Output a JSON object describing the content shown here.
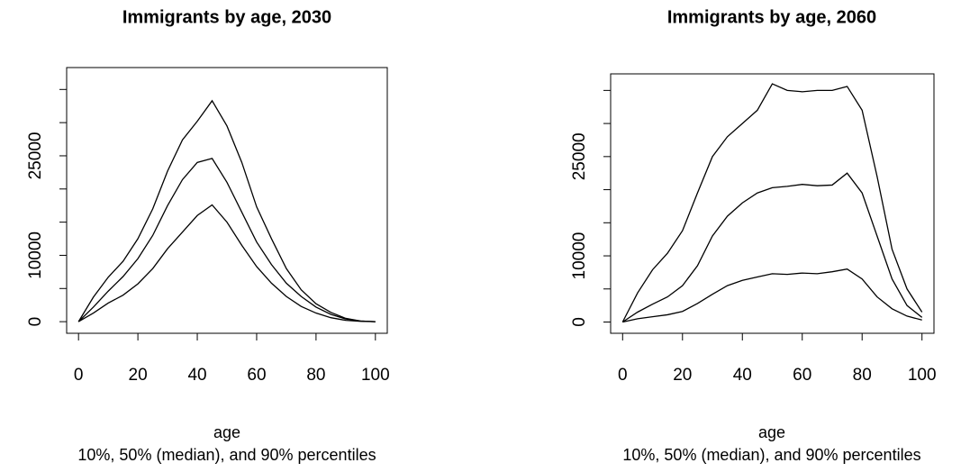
{
  "chart_data": [
    {
      "type": "line",
      "title": "Immigrants by age, 2030",
      "x_label": "age",
      "subtitle": "10%, 50% (median), and 90% percentiles",
      "x": [
        0,
        5,
        10,
        15,
        20,
        25,
        30,
        35,
        40,
        45,
        50,
        55,
        60,
        65,
        70,
        75,
        80,
        85,
        90,
        95,
        100
      ],
      "series": [
        {
          "color": "#000000",
          "values": [
            0,
            1300,
            2800,
            4000,
            5700,
            8000,
            11000,
            13500,
            16000,
            17600,
            15000,
            11500,
            8300,
            5800,
            3800,
            2300,
            1300,
            600,
            200,
            50,
            0
          ]
        },
        {
          "color": "#000000",
          "values": [
            0,
            2200,
            4600,
            6800,
            9500,
            13000,
            17500,
            21400,
            24000,
            24600,
            21000,
            16500,
            12000,
            8600,
            5800,
            3800,
            2200,
            1100,
            400,
            100,
            0
          ]
        },
        {
          "color": "#000000",
          "values": [
            0,
            3700,
            6700,
            9100,
            12500,
            17000,
            22700,
            27400,
            30200,
            33300,
            29500,
            24000,
            17300,
            12500,
            8000,
            4800,
            2700,
            1400,
            500,
            100,
            0
          ]
        }
      ],
      "xlim": [
        -4,
        104
      ],
      "xticks": [
        0,
        20,
        40,
        60,
        80,
        100
      ],
      "ylim": [
        -1750,
        38300
      ],
      "yticks": [
        0,
        5000,
        10000,
        15000,
        20000,
        25000,
        30000,
        35000
      ]
    },
    {
      "type": "line",
      "title": "Immigrants by age, 2060",
      "x_label": "age",
      "subtitle": "10%, 50% (median), and 90% percentiles",
      "x": [
        0,
        5,
        10,
        15,
        20,
        25,
        30,
        35,
        40,
        45,
        50,
        55,
        60,
        65,
        70,
        75,
        80,
        85,
        90,
        95,
        100
      ],
      "series": [
        {
          "color": "#000000",
          "values": [
            0,
            500,
            800,
            1100,
            1600,
            2800,
            4200,
            5500,
            6300,
            6800,
            7300,
            7200,
            7400,
            7300,
            7600,
            8000,
            6500,
            3800,
            2000,
            900,
            300
          ]
        },
        {
          "color": "#000000",
          "values": [
            0,
            1500,
            2700,
            3800,
            5500,
            8500,
            13000,
            16000,
            18000,
            19500,
            20300,
            20500,
            20800,
            20600,
            20700,
            22500,
            19500,
            13000,
            6500,
            2500,
            700
          ]
        },
        {
          "color": "#000000",
          "values": [
            0,
            4400,
            7900,
            10400,
            13800,
            19500,
            25000,
            28000,
            30000,
            32000,
            36000,
            35000,
            34800,
            35000,
            35000,
            35600,
            32000,
            22000,
            11000,
            5000,
            1500
          ]
        }
      ],
      "xlim": [
        -4,
        104
      ],
      "xticks": [
        0,
        20,
        40,
        60,
        80,
        100
      ],
      "ylim": [
        -1700,
        37500
      ],
      "yticks": [
        0,
        5000,
        10000,
        15000,
        20000,
        25000,
        30000,
        35000
      ]
    }
  ]
}
